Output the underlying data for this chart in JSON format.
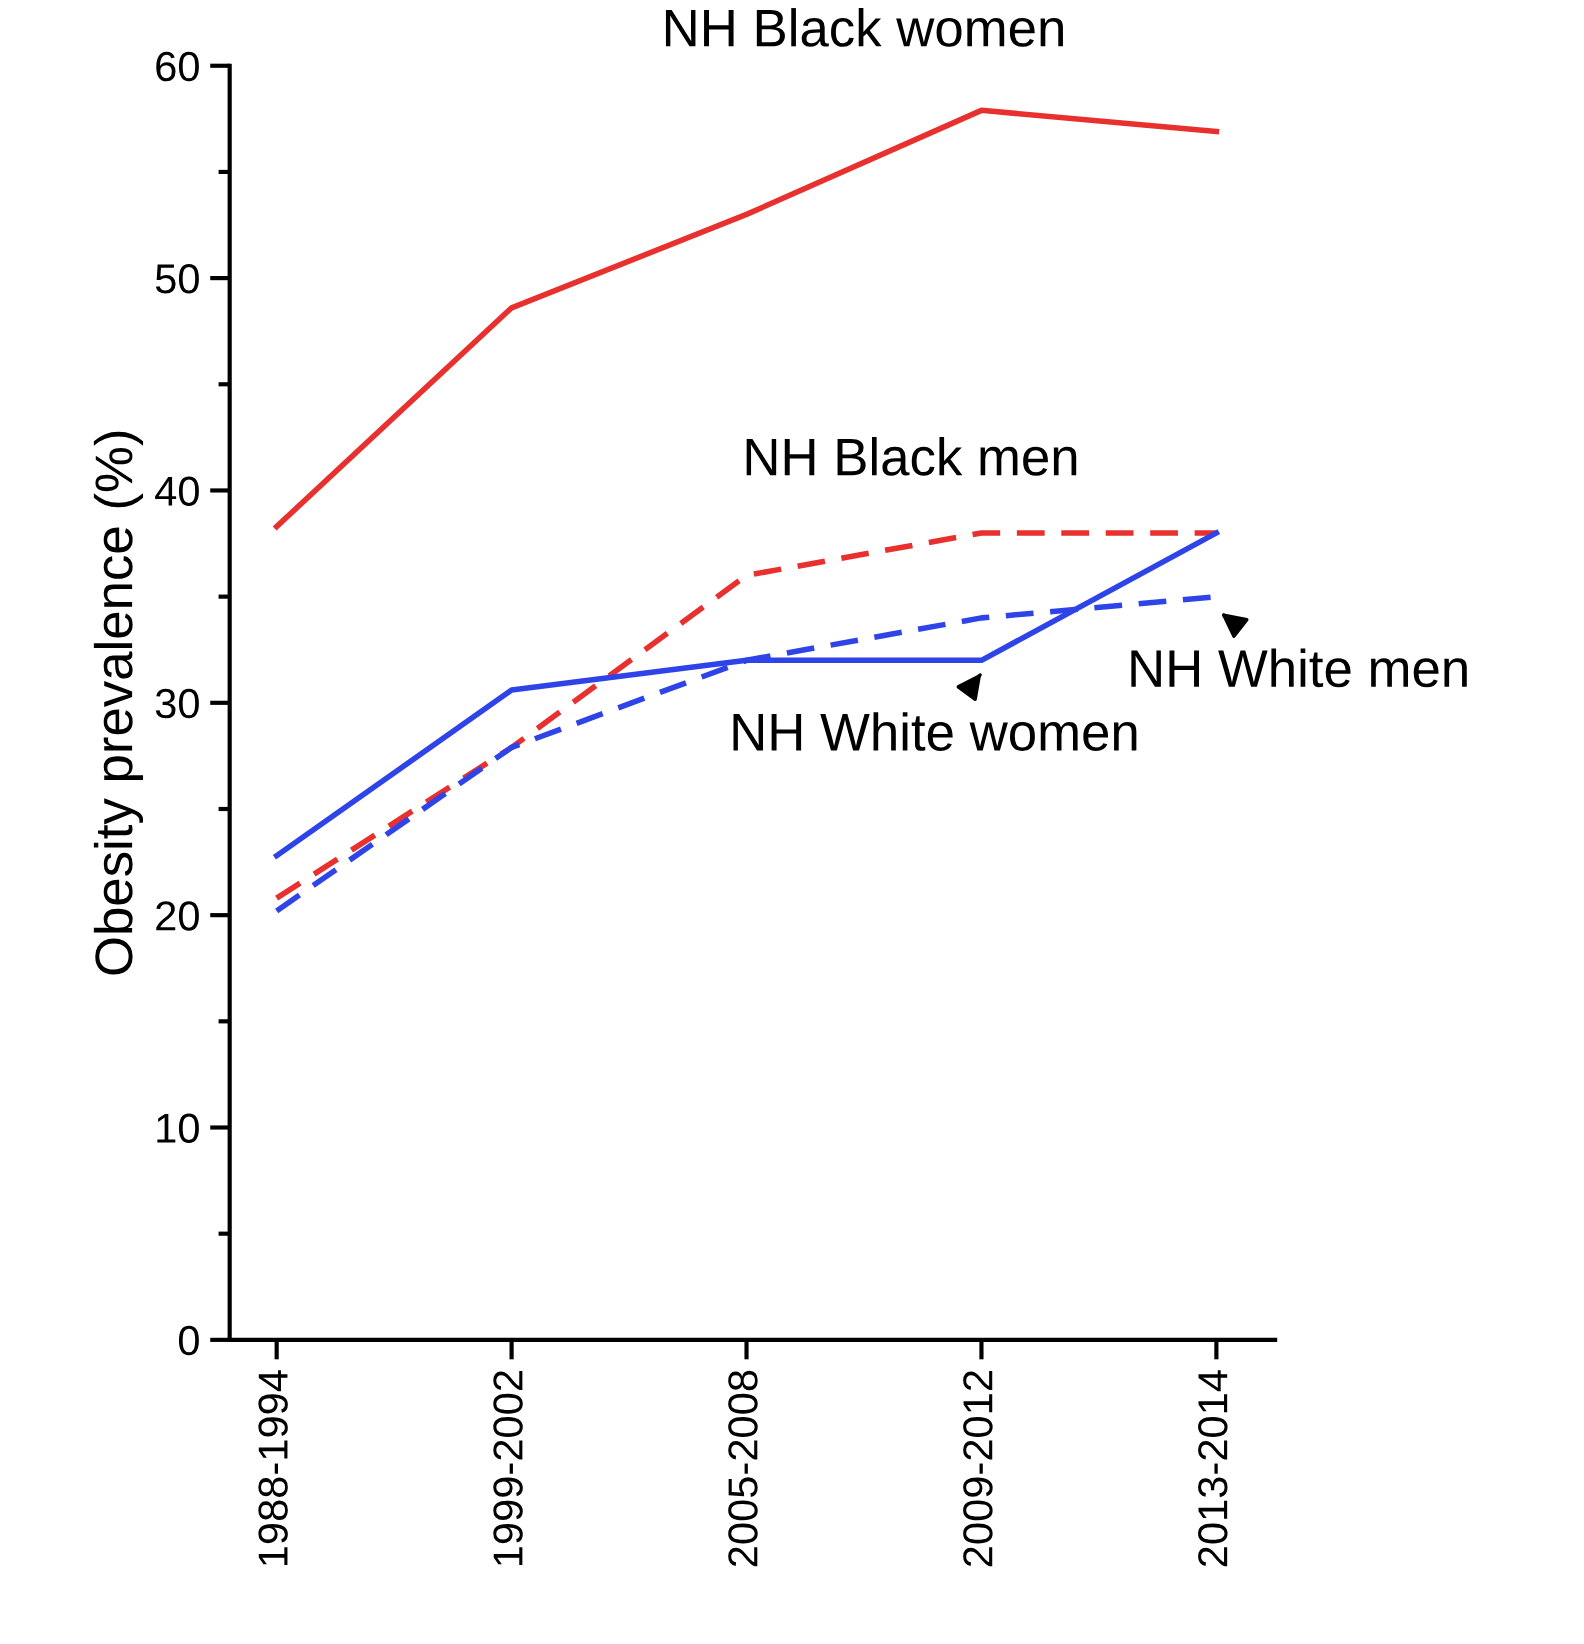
{
  "chart_data": {
    "type": "line",
    "ylabel": "Obesity prevalence (%)",
    "categories": [
      "1988-1994",
      "1999-2002",
      "2005-2008",
      "2009-2012",
      "2013-2014"
    ],
    "ylim": [
      0,
      60
    ],
    "yticks": [
      0,
      10,
      20,
      30,
      40,
      50,
      60
    ],
    "grid": false,
    "legend": false,
    "marker": "none",
    "series": [
      {
        "name": "NH Black women",
        "color": "#e8312f",
        "line_style": "solid",
        "values": [
          38.3,
          48.6,
          53.0,
          57.9,
          56.9
        ]
      },
      {
        "name": "NH Black men",
        "color": "#e8312f",
        "line_style": "dashed",
        "values": [
          20.8,
          27.9,
          36.0,
          38.0,
          38.0
        ]
      },
      {
        "name": "NH White women",
        "color": "#2f44e8",
        "line_style": "solid",
        "values": [
          22.8,
          30.6,
          32.0,
          32.0,
          38.0
        ]
      },
      {
        "name": "NH White men",
        "color": "#2f44e8",
        "line_style": "dashed",
        "values": [
          20.2,
          27.9,
          32.0,
          34.0,
          35.0
        ]
      }
    ]
  }
}
